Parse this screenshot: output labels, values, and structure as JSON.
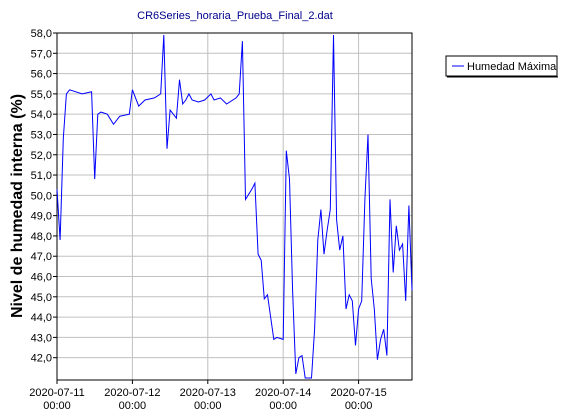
{
  "chart_data": {
    "type": "line",
    "title": "CR6Series_horaria_Prueba_Final_2.dat",
    "y_label": "Nivel de humedad interna (%)",
    "legend": "right",
    "grid": true,
    "ylim": [
      40.9,
      58
    ],
    "yticks": [
      {
        "value": 42,
        "label": "42,0"
      },
      {
        "value": 43,
        "label": "43,0"
      },
      {
        "value": 44,
        "label": "44,0"
      },
      {
        "value": 45,
        "label": "45,0"
      },
      {
        "value": 46,
        "label": "46,0"
      },
      {
        "value": 47,
        "label": "47,0"
      },
      {
        "value": 48,
        "label": "48,0"
      },
      {
        "value": 49,
        "label": "49,0"
      },
      {
        "value": 50,
        "label": "50,0"
      },
      {
        "value": 51,
        "label": "51,0"
      },
      {
        "value": 52,
        "label": "52,0"
      },
      {
        "value": 53,
        "label": "53,0"
      },
      {
        "value": 54,
        "label": "54,0"
      },
      {
        "value": 55,
        "label": "55,0"
      },
      {
        "value": 56,
        "label": "56,0"
      },
      {
        "value": 57,
        "label": "57,0"
      },
      {
        "value": 58,
        "label": "58,0"
      }
    ],
    "xlim": [
      "2020-07-11 00:00",
      "2020-07-15 17:00"
    ],
    "xticks": [
      "2020-07-11 00:00",
      "2020-07-12 00:00",
      "2020-07-13 00:00",
      "2020-07-14 00:00",
      "2020-07-15 00:00"
    ],
    "x": [
      "2020-07-11 00:00",
      "2020-07-11 01:00",
      "2020-07-11 02:00",
      "2020-07-11 03:00",
      "2020-07-11 04:00",
      "2020-07-11 08:00",
      "2020-07-11 11:00",
      "2020-07-11 12:00",
      "2020-07-11 13:00",
      "2020-07-11 14:00",
      "2020-07-11 16:00",
      "2020-07-11 18:00",
      "2020-07-11 20:00",
      "2020-07-11 23:00",
      "2020-07-12 00:00",
      "2020-07-12 02:00",
      "2020-07-12 04:00",
      "2020-07-12 07:00",
      "2020-07-12 09:00",
      "2020-07-12 10:00",
      "2020-07-12 11:00",
      "2020-07-12 12:00",
      "2020-07-12 14:00",
      "2020-07-12 15:00",
      "2020-07-12 16:00",
      "2020-07-12 17:00",
      "2020-07-12 18:00",
      "2020-07-12 19:00",
      "2020-07-12 21:00",
      "2020-07-12 23:00",
      "2020-07-13 01:00",
      "2020-07-13 02:00",
      "2020-07-13 04:00",
      "2020-07-13 06:00",
      "2020-07-13 09:00",
      "2020-07-13 10:00",
      "2020-07-13 11:00",
      "2020-07-13 12:00",
      "2020-07-13 14:00",
      "2020-07-13 15:00",
      "2020-07-13 16:00",
      "2020-07-13 17:00",
      "2020-07-13 18:00",
      "2020-07-13 19:00",
      "2020-07-13 21:00",
      "2020-07-13 22:00",
      "2020-07-14 00:00",
      "2020-07-14 01:00",
      "2020-07-14 02:00",
      "2020-07-14 03:00",
      "2020-07-14 04:00",
      "2020-07-14 05:00",
      "2020-07-14 06:00",
      "2020-07-14 07:00",
      "2020-07-14 09:00",
      "2020-07-14 10:00",
      "2020-07-14 11:00",
      "2020-07-14 12:00",
      "2020-07-14 13:00",
      "2020-07-14 14:00",
      "2020-07-14 15:00",
      "2020-07-14 16:00",
      "2020-07-14 17:00",
      "2020-07-14 18:00",
      "2020-07-14 19:00",
      "2020-07-14 20:00",
      "2020-07-14 21:00",
      "2020-07-14 22:00",
      "2020-07-14 23:00",
      "2020-07-15 00:00",
      "2020-07-15 01:00",
      "2020-07-15 02:00",
      "2020-07-15 03:00",
      "2020-07-15 04:00",
      "2020-07-15 05:00",
      "2020-07-15 06:00",
      "2020-07-15 07:00",
      "2020-07-15 08:00",
      "2020-07-15 09:00",
      "2020-07-15 10:00",
      "2020-07-15 11:00",
      "2020-07-15 12:00",
      "2020-07-15 13:00",
      "2020-07-15 14:00",
      "2020-07-15 15:00",
      "2020-07-15 16:00",
      "2020-07-15 17:00"
    ],
    "series": [
      {
        "name": "Humedad Máxima",
        "color": "#0000ff",
        "values": [
          50.3,
          47.8,
          52.8,
          55.0,
          55.2,
          55.0,
          55.1,
          50.8,
          54.0,
          54.1,
          54.0,
          53.5,
          53.9,
          54.0,
          55.2,
          54.4,
          54.7,
          54.8,
          55.0,
          57.9,
          52.3,
          54.2,
          53.8,
          55.7,
          54.5,
          54.7,
          55.0,
          54.7,
          54.6,
          54.7,
          55.0,
          54.7,
          54.8,
          54.5,
          54.8,
          55.0,
          57.6,
          49.8,
          50.3,
          50.6,
          47.1,
          46.8,
          44.9,
          45.1,
          42.9,
          43.0,
          42.9,
          52.2,
          50.8,
          45.3,
          41.2,
          42.0,
          42.1,
          41.0,
          41.0,
          43.4,
          47.8,
          49.3,
          47.1,
          48.3,
          49.3,
          57.9,
          48.8,
          47.3,
          48.0,
          44.4,
          45.1,
          44.8,
          42.6,
          44.4,
          44.8,
          49.8,
          53.0,
          45.9,
          44.4,
          41.9,
          42.9,
          43.4,
          42.1,
          49.8,
          46.2,
          48.5,
          47.3,
          47.6,
          44.8,
          49.5,
          45.3
        ]
      }
    ]
  }
}
